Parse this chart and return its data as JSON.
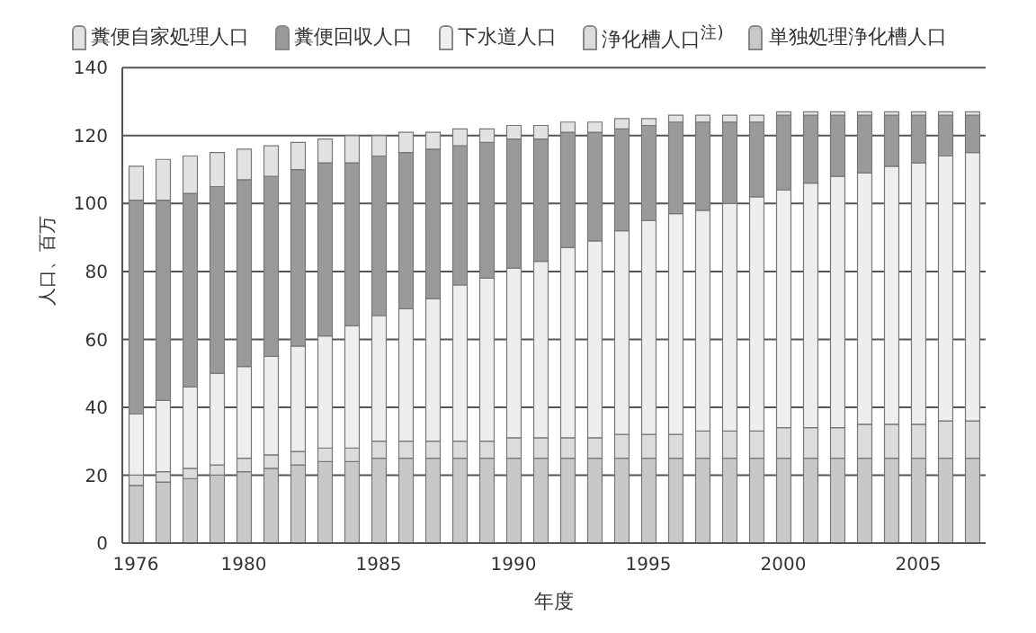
{
  "chart_data": {
    "type": "bar",
    "stacked": true,
    "xlabel": "年度",
    "ylabel": "人口、百万",
    "categories": [
      "1976",
      null,
      null,
      null,
      "1980",
      null,
      null,
      null,
      null,
      "1985",
      null,
      null,
      null,
      null,
      "1990",
      null,
      null,
      null,
      null,
      "1995",
      null,
      null,
      null,
      null,
      "2000",
      null,
      null,
      null,
      null,
      "2005",
      null,
      null
    ],
    "series": [
      {
        "name": "単独処理浄化槽人口",
        "color": "#c8c8c8",
        "values": [
          17,
          18,
          19,
          20,
          21,
          22,
          23,
          24,
          24,
          25,
          25,
          25,
          25,
          25,
          25,
          25,
          25,
          25,
          25,
          25,
          25,
          25,
          25,
          25,
          25,
          25,
          25,
          25,
          25,
          25,
          25,
          25
        ]
      },
      {
        "name": "浄化槽人口$^{注)}$",
        "color": "#dcdcdc",
        "values": [
          3,
          3,
          3,
          3,
          4,
          4,
          4,
          4,
          4,
          5,
          5,
          5,
          5,
          5,
          6,
          6,
          6,
          6,
          7,
          7,
          7,
          8,
          8,
          8,
          9,
          9,
          9,
          10,
          10,
          10,
          11,
          11
        ]
      },
      {
        "name": "下水道人口",
        "color": "#eeeeee",
        "values": [
          18,
          21,
          24,
          27,
          27,
          29,
          31,
          33,
          36,
          37,
          39,
          42,
          46,
          48,
          50,
          52,
          56,
          58,
          60,
          63,
          65,
          65,
          67,
          69,
          70,
          72,
          74,
          74,
          76,
          77,
          78,
          79
        ]
      },
      {
        "name": "糞便回収人口",
        "color": "#9a9a9a",
        "values": [
          63,
          59,
          57,
          55,
          55,
          53,
          52,
          51,
          48,
          47,
          46,
          44,
          41,
          40,
          38,
          36,
          34,
          32,
          30,
          28,
          27,
          26,
          24,
          22,
          22,
          20,
          18,
          17,
          15,
          14,
          12,
          11
        ]
      },
      {
        "name": "糞便自家処理人口",
        "color": "#e2e2e2",
        "values": [
          10,
          12,
          11,
          10,
          9,
          9,
          8,
          7,
          8,
          6,
          6,
          5,
          5,
          4,
          4,
          4,
          3,
          3,
          3,
          2,
          2,
          2,
          2,
          2,
          1,
          1,
          1,
          1,
          1,
          1,
          1,
          1
        ]
      }
    ],
    "ylim": [
      0,
      140
    ],
    "yticks": [
      0,
      20,
      40,
      60,
      80,
      100,
      120,
      140
    ],
    "grid": "y",
    "legend": "top"
  }
}
